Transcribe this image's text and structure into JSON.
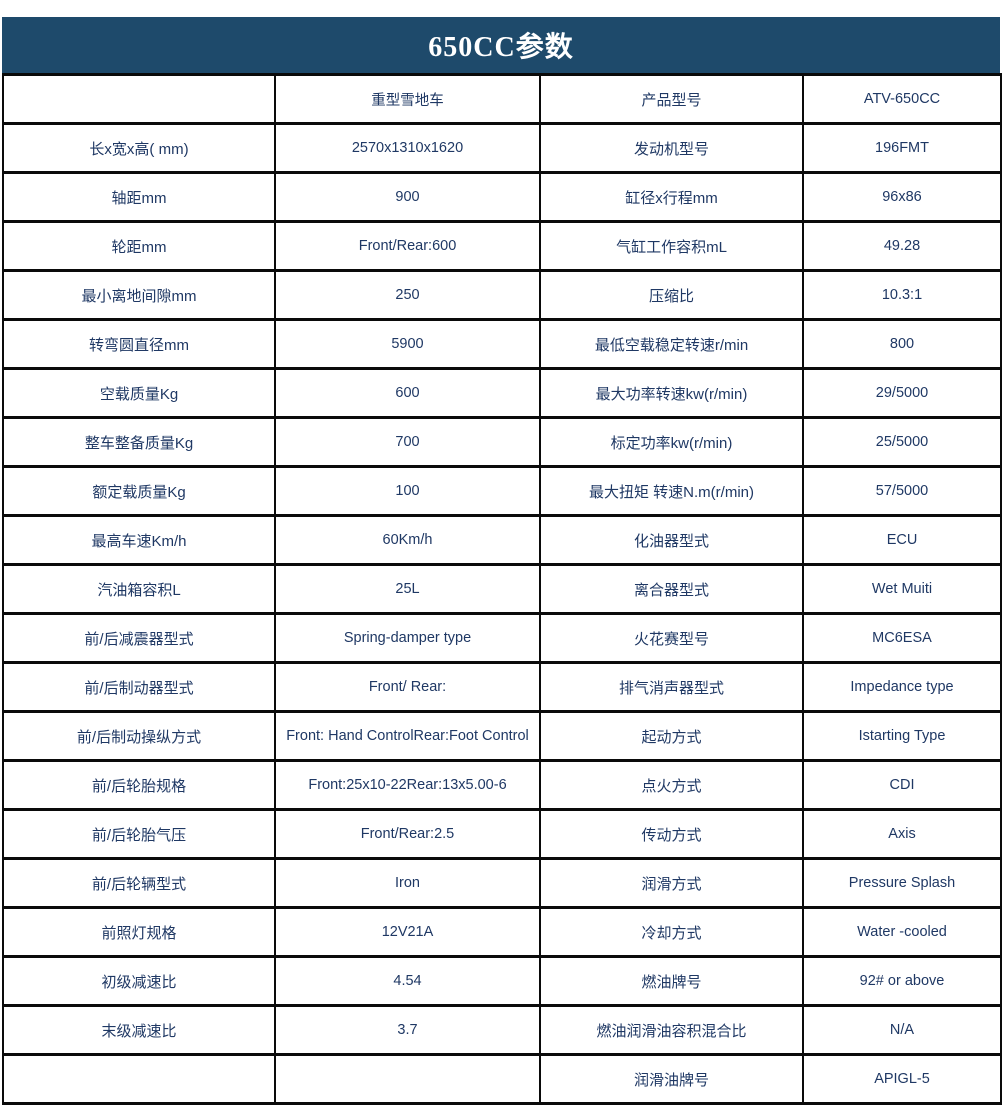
{
  "title": "650CC参数",
  "colors": {
    "header_bg": "#1e4a6b",
    "header_text": "#ffffff",
    "cell_text": "#1f3864",
    "border": "#0a0a0a"
  },
  "table": {
    "rows": [
      [
        "",
        "重型雪地车",
        "产品型号",
        "ATV-650CC"
      ],
      [
        "长x宽x高( mm)",
        "2570x1310x1620",
        "发动机型号",
        "196FMT"
      ],
      [
        "轴距mm",
        "900",
        "缸径x行程mm",
        "96x86"
      ],
      [
        "轮距mm",
        "Front/Rear:600",
        "气缸工作容积mL",
        "49.28"
      ],
      [
        "最小离地间隙mm",
        "250",
        "压缩比",
        "10.3:1"
      ],
      [
        "转弯圆直径mm",
        "5900",
        "最低空载稳定转速r/min",
        "800"
      ],
      [
        "空载质量Kg",
        "600",
        "最大功率转速kw(r/min)",
        "29/5000"
      ],
      [
        "整车整备质量Kg",
        "700",
        "标定功率kw(r/min)",
        "25/5000"
      ],
      [
        "额定载质量Kg",
        "100",
        "最大扭矩 转速N.m(r/min)",
        "57/5000"
      ],
      [
        "最高车速Km/h",
        "60Km/h",
        "化油器型式",
        "ECU"
      ],
      [
        "汽油箱容积L",
        "25L",
        "离合器型式",
        "Wet Muiti"
      ],
      [
        "前/后减震器型式",
        "Spring-damper type",
        "火花赛型号",
        "MC6ESA"
      ],
      [
        "前/后制动器型式",
        "Front/ Rear:",
        "排气消声器型式",
        "Impedance type"
      ],
      [
        "前/后制动操纵方式",
        "Front: Hand ControlRear:Foot Control",
        "起动方式",
        "Istarting Type"
      ],
      [
        "前/后轮胎规格",
        "Front:25x10-22Rear:13x5.00-6",
        "点火方式",
        "CDI"
      ],
      [
        "前/后轮胎气压",
        "Front/Rear:2.5",
        "传动方式",
        "Axis"
      ],
      [
        "前/后轮辆型式",
        "Iron",
        "润滑方式",
        "Pressure Splash"
      ],
      [
        "前照灯规格",
        "12V21A",
        "冷却方式",
        "Water -cooled"
      ],
      [
        "初级减速比",
        "4.54",
        "燃油牌号",
        "92# or above"
      ],
      [
        "末级减速比",
        "3.7",
        "燃油润滑油容积混合比",
        "N/A"
      ],
      [
        "",
        "",
        "润滑油牌号",
        "APIGL-5"
      ]
    ]
  }
}
